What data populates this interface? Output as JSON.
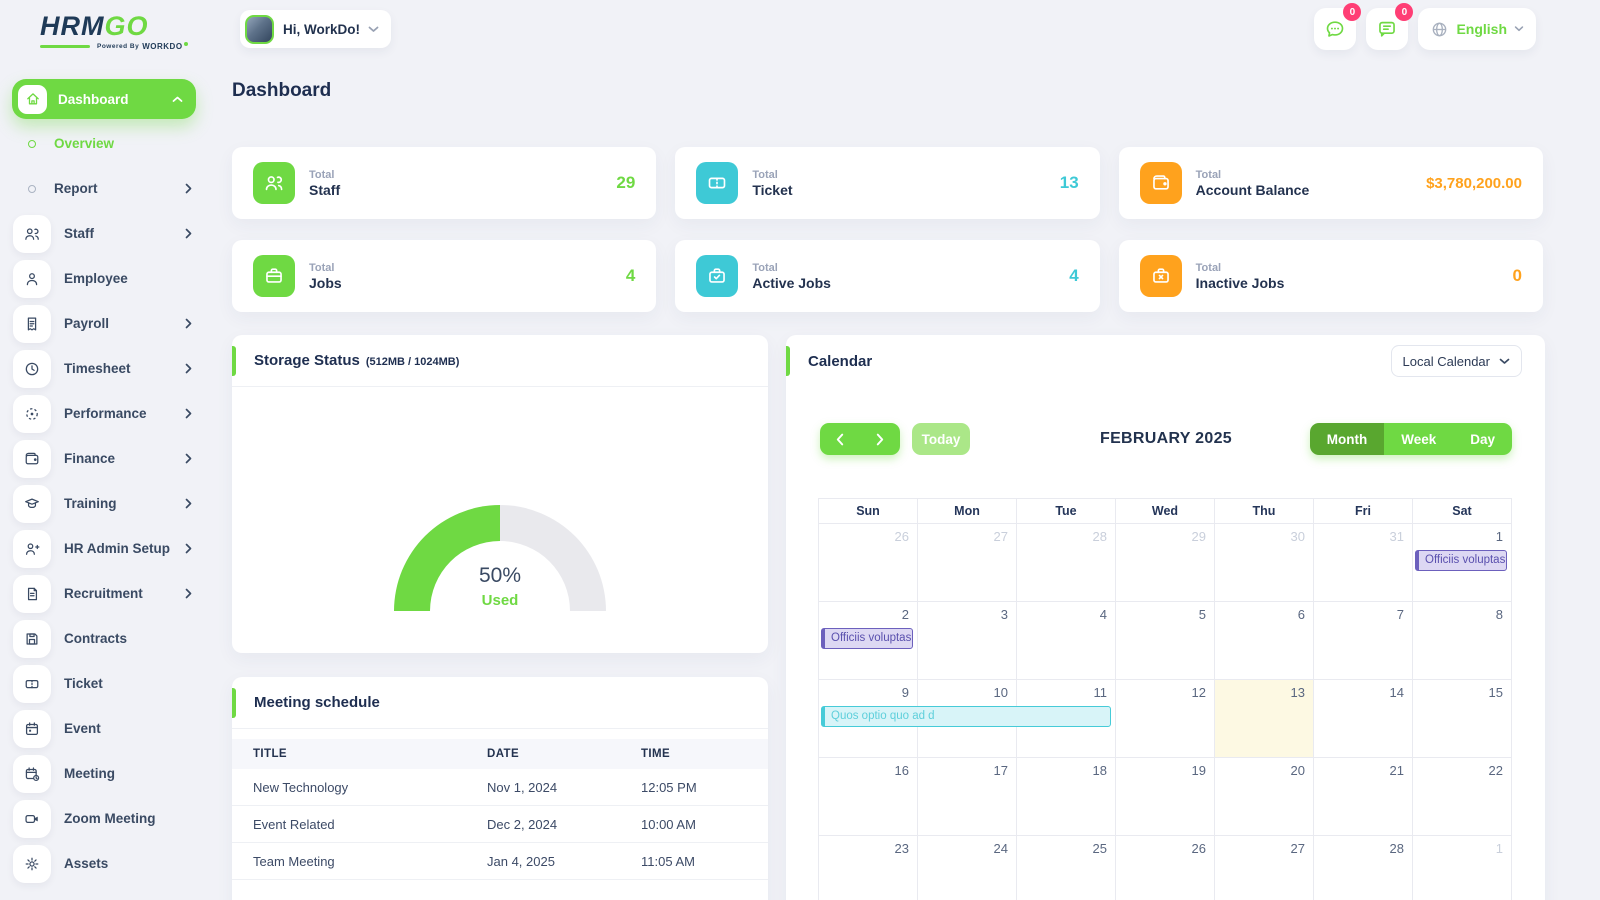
{
  "brand": {
    "name_primary": "HRM",
    "name_secondary": "GO",
    "powered_by": "Powered By",
    "powered_brand": "WORKDO"
  },
  "topbar": {
    "greeting": "Hi, WorkDo!",
    "language": "English",
    "messages_badge": "0",
    "notifications_badge": "0"
  },
  "page": {
    "title": "Dashboard"
  },
  "sidebar": {
    "items": [
      {
        "label": "Dashboard"
      },
      {
        "label": "Overview"
      },
      {
        "label": "Report"
      },
      {
        "label": "Staff"
      },
      {
        "label": "Employee"
      },
      {
        "label": "Payroll"
      },
      {
        "label": "Timesheet"
      },
      {
        "label": "Performance"
      },
      {
        "label": "Finance"
      },
      {
        "label": "Training"
      },
      {
        "label": "HR Admin Setup"
      },
      {
        "label": "Recruitment"
      },
      {
        "label": "Contracts"
      },
      {
        "label": "Ticket"
      },
      {
        "label": "Event"
      },
      {
        "label": "Meeting"
      },
      {
        "label": "Zoom Meeting"
      },
      {
        "label": "Assets"
      }
    ]
  },
  "stats": [
    {
      "label_top": "Total",
      "label": "Staff",
      "value": "29",
      "color": "#6fd943",
      "icon": "users-icon"
    },
    {
      "label_top": "Total",
      "label": "Ticket",
      "value": "13",
      "color": "#3ec9d6",
      "icon": "ticket-icon"
    },
    {
      "label_top": "Total",
      "label": "Account Balance",
      "value": "$3,780,200.00",
      "color": "#ffa21d",
      "icon": "wallet-icon"
    },
    {
      "label_top": "Total",
      "label": "Jobs",
      "value": "4",
      "color": "#6fd943",
      "icon": "briefcase-icon"
    },
    {
      "label_top": "Total",
      "label": "Active Jobs",
      "value": "4",
      "color": "#3ec9d6",
      "icon": "briefcase-check-icon"
    },
    {
      "label_top": "Total",
      "label": "Inactive Jobs",
      "value": "0",
      "color": "#ffa21d",
      "icon": "briefcase-x-icon"
    }
  ],
  "storage": {
    "title": "Storage Status",
    "subtitle": "(512MB / 1024MB)",
    "percent": 50,
    "percent_label": "50%",
    "used_label": "Used"
  },
  "meeting_schedule": {
    "title": "Meeting schedule",
    "columns": [
      "TITLE",
      "DATE",
      "TIME"
    ],
    "rows": [
      {
        "title": "New Technology",
        "date": "Nov 1, 2024",
        "time": "12:05 PM"
      },
      {
        "title": "Event Related",
        "date": "Dec 2, 2024",
        "time": "10:00 AM"
      },
      {
        "title": "Team Meeting",
        "date": "Jan 4, 2025",
        "time": "11:05 AM"
      }
    ]
  },
  "calendar": {
    "title": "Calendar",
    "source_select": "Local Calendar",
    "toolbar": {
      "today": "Today",
      "month_title": "FEBRUARY 2025",
      "views": [
        "Month",
        "Week",
        "Day"
      ],
      "active_view": "Month"
    },
    "day_headers": [
      "Sun",
      "Mon",
      "Tue",
      "Wed",
      "Thu",
      "Fri",
      "Sat"
    ],
    "weeks": [
      {
        "days": [
          {
            "n": "26",
            "muted": true
          },
          {
            "n": "27",
            "muted": true
          },
          {
            "n": "28",
            "muted": true
          },
          {
            "n": "29",
            "muted": true
          },
          {
            "n": "30",
            "muted": true
          },
          {
            "n": "31",
            "muted": true
          },
          {
            "n": "1"
          }
        ]
      },
      {
        "days": [
          {
            "n": "2"
          },
          {
            "n": "3"
          },
          {
            "n": "4"
          },
          {
            "n": "5"
          },
          {
            "n": "6"
          },
          {
            "n": "7"
          },
          {
            "n": "8"
          }
        ]
      },
      {
        "days": [
          {
            "n": "9"
          },
          {
            "n": "10"
          },
          {
            "n": "11"
          },
          {
            "n": "12"
          },
          {
            "n": "13",
            "today": true
          },
          {
            "n": "14"
          },
          {
            "n": "15"
          }
        ]
      },
      {
        "days": [
          {
            "n": "16"
          },
          {
            "n": "17"
          },
          {
            "n": "18"
          },
          {
            "n": "19"
          },
          {
            "n": "20"
          },
          {
            "n": "21"
          },
          {
            "n": "22"
          }
        ]
      },
      {
        "days": [
          {
            "n": "23"
          },
          {
            "n": "24"
          },
          {
            "n": "25"
          },
          {
            "n": "26"
          },
          {
            "n": "27"
          },
          {
            "n": "28"
          },
          {
            "n": "1",
            "muted": true
          }
        ]
      }
    ],
    "events": [
      {
        "week": 0,
        "col": 6,
        "span": 1,
        "label": "Officiis voluptas d",
        "theme": "purple"
      },
      {
        "week": 1,
        "col": 0,
        "span": 1,
        "label": "Officiis voluptas c",
        "theme": "purple"
      },
      {
        "week": 2,
        "col": 0,
        "span": 3,
        "label": "Quos optio quo ad d",
        "theme": "cyan"
      }
    ]
  },
  "colors": {
    "green": "#6fd943",
    "dark_green": "#59a72f",
    "light_green": "#abe788",
    "cyan": "#3ec9d6",
    "orange": "#ffa21d",
    "pink": "#ff3e75",
    "gauge_track": "#e9e9ed",
    "today_bg": "#fdf9e3"
  }
}
